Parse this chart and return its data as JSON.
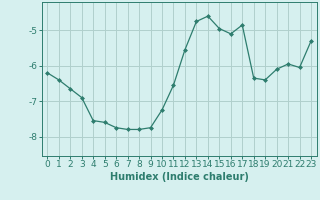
{
  "x": [
    0,
    1,
    2,
    3,
    4,
    5,
    6,
    7,
    8,
    9,
    10,
    11,
    12,
    13,
    14,
    15,
    16,
    17,
    18,
    19,
    20,
    21,
    22,
    23
  ],
  "y": [
    -6.2,
    -6.4,
    -6.65,
    -6.9,
    -7.55,
    -7.6,
    -7.75,
    -7.8,
    -7.8,
    -7.75,
    -7.25,
    -6.55,
    -5.55,
    -4.75,
    -4.6,
    -4.95,
    -5.1,
    -4.85,
    -6.35,
    -6.4,
    -6.1,
    -5.95,
    -6.05,
    -5.3
  ],
  "line_color": "#2e7d6e",
  "marker": "D",
  "marker_size": 2.0,
  "bg_color": "#d6f0ef",
  "grid_color": "#b0cfcc",
  "axis_color": "#2e7d6e",
  "xlabel": "Humidex (Indice chaleur)",
  "xlim": [
    -0.5,
    23.5
  ],
  "ylim": [
    -8.55,
    -4.2
  ],
  "yticks": [
    -8,
    -7,
    -6,
    -5
  ],
  "xtick_labels": [
    "0",
    "1",
    "2",
    "3",
    "4",
    "5",
    "6",
    "7",
    "8",
    "9",
    "10",
    "11",
    "12",
    "13",
    "14",
    "15",
    "16",
    "17",
    "18",
    "19",
    "20",
    "21",
    "22",
    "23"
  ],
  "xlabel_fontsize": 7,
  "tick_fontsize": 6.5
}
